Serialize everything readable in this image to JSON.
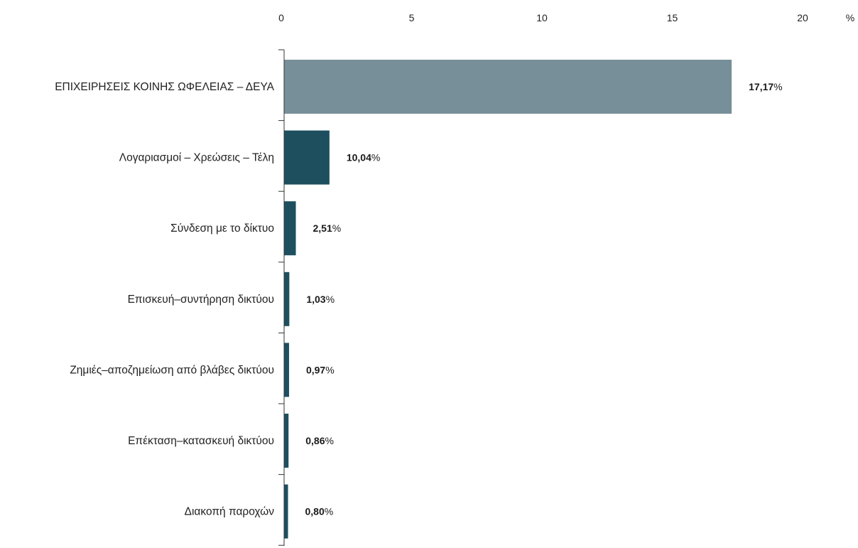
{
  "chart_data": {
    "type": "bar",
    "orientation": "horizontal",
    "categories": [
      "ΕΠΙΧΕΙΡΗΣΕΙΣ ΚΟΙΝΗΣ ΩΦΕΛΕΙΑΣ – ΔΕΥΑ",
      "Λογαριασμοί – Χρεώσεις – Τέλη",
      "Σύνδεση με το δίκτυο",
      "Επισκευή–συντήρηση δικτύου",
      "Ζημιές–αποζημείωση από βλάβες δικτύου",
      "Επέκταση–κατασκευή δικτύου",
      "Διακοπή παροχών"
    ],
    "values": [
      17.17,
      1.74,
      0.45,
      0.2,
      0.19,
      0.17,
      0.15
    ],
    "value_labels": [
      "17,17",
      "10,04",
      "2,51",
      "1,03",
      "0,97",
      "0,86",
      "0,80"
    ],
    "value_suffix": "%",
    "bar_colors": [
      "#778f99",
      "#1d4f5f",
      "#1d4f5f",
      "#1d4f5f",
      "#1d4f5f",
      "#1d4f5f",
      "#1d4f5f"
    ],
    "xlim": [
      0,
      20
    ],
    "xticks": [
      0,
      5,
      10,
      15,
      20
    ],
    "x_unit": "%",
    "axis_position": "top",
    "grid": false,
    "title": "",
    "xlabel": "",
    "ylabel": ""
  }
}
